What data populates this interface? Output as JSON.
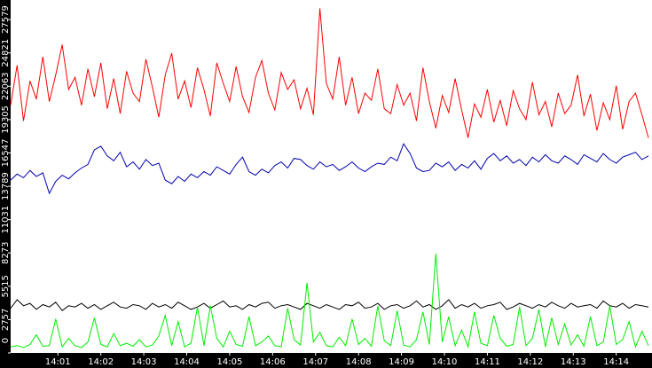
{
  "chart_data": {
    "type": "line",
    "x": [
      -6,
      3,
      12,
      21,
      30,
      39,
      48,
      57,
      66,
      75,
      84,
      93,
      102,
      111,
      120,
      129,
      138,
      147,
      156,
      165,
      174,
      183,
      192,
      201,
      210,
      219,
      228,
      237,
      246,
      255,
      264,
      273,
      282,
      291,
      300,
      309,
      318,
      327,
      336,
      345,
      354,
      363,
      372,
      381,
      390,
      399,
      408,
      417,
      426,
      435,
      444,
      453,
      462,
      471,
      480,
      489,
      498,
      507,
      516,
      525,
      534,
      543,
      552,
      561,
      570,
      579,
      588,
      597,
      606,
      615,
      624,
      633,
      642,
      651,
      660,
      669,
      678,
      687,
      696,
      705,
      714,
      723,
      732,
      741,
      750,
      759,
      768,
      777,
      786,
      795,
      804,
      813,
      822,
      831,
      840,
      849,
      858,
      867,
      876,
      885
    ],
    "series": [
      {
        "color": "#ff0000",
        "values": [
          20500,
          23800,
          19200,
          22500,
          21000,
          24500,
          20800,
          23000,
          25500,
          21800,
          22800,
          20500,
          23500,
          21200,
          24000,
          20200,
          22700,
          19800,
          23300,
          21500,
          20800,
          24300,
          22000,
          19500,
          23000,
          24800,
          21000,
          22500,
          20300,
          23600,
          21800,
          19600,
          24000,
          22300,
          20800,
          23700,
          21200,
          19900,
          22800,
          24200,
          21500,
          20100,
          23200,
          21800,
          22600,
          20200,
          21900,
          19700,
          28500,
          22300,
          21000,
          24500,
          20500,
          22800,
          19800,
          21500,
          20900,
          23500,
          20200,
          19800,
          22200,
          20500,
          21500,
          19200,
          23600,
          20800,
          18600,
          21300,
          19900,
          22700,
          20100,
          17800,
          20600,
          19500,
          21800,
          19100,
          20900,
          18800,
          21700,
          20200,
          19300,
          22400,
          19700,
          20800,
          18700,
          21500,
          19800,
          20500,
          23000,
          19600,
          21400,
          18400,
          20700,
          19300,
          22100,
          18500,
          20800,
          21500,
          19700,
          17800
        ]
      },
      {
        "color": "#0000b0",
        "values": [
          14300,
          14800,
          14500,
          15100,
          14600,
          14900,
          13200,
          14200,
          14700,
          14400,
          14900,
          15300,
          15600,
          16800,
          17100,
          16300,
          15900,
          16600,
          15400,
          15800,
          15200,
          16000,
          15500,
          15700,
          14300,
          14000,
          14600,
          14200,
          14800,
          14500,
          15000,
          14700,
          15400,
          15100,
          14800,
          15600,
          16200,
          15000,
          14700,
          15200,
          14900,
          15500,
          15800,
          15300,
          16100,
          16000,
          15500,
          15200,
          15800,
          15400,
          15600,
          15100,
          15400,
          15800,
          15300,
          15000,
          15400,
          15700,
          15600,
          16200,
          15900,
          17300,
          16500,
          15300,
          15000,
          15100,
          15700,
          15400,
          15800,
          15100,
          15600,
          15300,
          15900,
          15200,
          16100,
          16500,
          15900,
          16300,
          15700,
          16000,
          15500,
          16200,
          15800,
          16400,
          15900,
          15700,
          16300,
          16000,
          15600,
          16400,
          16100,
          15800,
          16500,
          16000,
          15700,
          16200,
          16400,
          16600,
          16000,
          16300
        ]
      },
      {
        "color": "#000000",
        "values": [
          3700,
          4400,
          3900,
          4100,
          3600,
          4000,
          3800,
          4200,
          3500,
          3900,
          3800,
          4100,
          3700,
          4000,
          3600,
          3900,
          4200,
          3800,
          3700,
          4000,
          3900,
          3600,
          4100,
          3800,
          4000,
          3700,
          4200,
          3900,
          3600,
          3800,
          4100,
          3700,
          4000,
          4300,
          3800,
          3900,
          3600,
          4000,
          3800,
          4100,
          4200,
          3700,
          3900,
          4000,
          3800,
          3600,
          4100,
          3900,
          3700,
          4000,
          3800,
          3600,
          4000,
          3900,
          4200,
          3700,
          3800,
          4100,
          3600,
          3900,
          4000,
          3700,
          3900,
          4300,
          3800,
          4000,
          3600,
          3900,
          4400,
          3700,
          4000,
          3800,
          4100,
          3700,
          3900,
          4000,
          4200,
          3600,
          3800,
          4100,
          3900,
          3700,
          4000,
          3800,
          4200,
          3900,
          3700,
          4100,
          3800,
          3900,
          4000,
          3700,
          4300,
          3900,
          3800,
          4100,
          3700,
          4000,
          3900,
          3800
        ]
      },
      {
        "color": "#00ee00",
        "values": [
          500,
          600,
          450,
          700,
          1500,
          550,
          600,
          2800,
          500,
          1200,
          600,
          450,
          900,
          2900,
          700,
          500,
          1600,
          600,
          800,
          550,
          1100,
          500,
          650,
          1400,
          3100,
          600,
          2600,
          500,
          800,
          3800,
          600,
          3900,
          1200,
          500,
          1800,
          700,
          550,
          3000,
          600,
          900,
          1400,
          600,
          500,
          3700,
          1100,
          650,
          5800,
          900,
          1700,
          600,
          500,
          1300,
          600,
          2800,
          700,
          1200,
          550,
          3900,
          1000,
          600,
          3500,
          650,
          500,
          1100,
          3400,
          700,
          8200,
          900,
          3000,
          600,
          1900,
          500,
          3400,
          800,
          600,
          3100,
          1200,
          550,
          700,
          3800,
          600,
          1200,
          3600,
          500,
          2900,
          700,
          2400,
          650,
          1500,
          550,
          3000,
          600,
          900,
          3900,
          700,
          1100,
          2600,
          500,
          1800,
          600
        ]
      }
    ],
    "xlim": [
      -6,
      890
    ],
    "xticks": [
      {
        "value": 60,
        "label": "14:01"
      },
      {
        "value": 120,
        "label": "14:02"
      },
      {
        "value": 180,
        "label": "14:03"
      },
      {
        "value": 240,
        "label": "14:04"
      },
      {
        "value": 300,
        "label": "14:05"
      },
      {
        "value": 360,
        "label": "14:06"
      },
      {
        "value": 420,
        "label": "14:07"
      },
      {
        "value": 480,
        "label": "14:08"
      },
      {
        "value": 540,
        "label": "14:09"
      },
      {
        "value": 600,
        "label": "14:10"
      },
      {
        "value": 660,
        "label": "14:11"
      },
      {
        "value": 720,
        "label": "14:12"
      },
      {
        "value": 780,
        "label": "14:13"
      },
      {
        "value": 840,
        "label": "14:14"
      }
    ],
    "ylim": [
      0,
      29200
    ],
    "yticks": [
      0,
      2757,
      5515,
      8273,
      11031,
      13789,
      16547,
      19305,
      22063,
      24821,
      27579
    ]
  }
}
